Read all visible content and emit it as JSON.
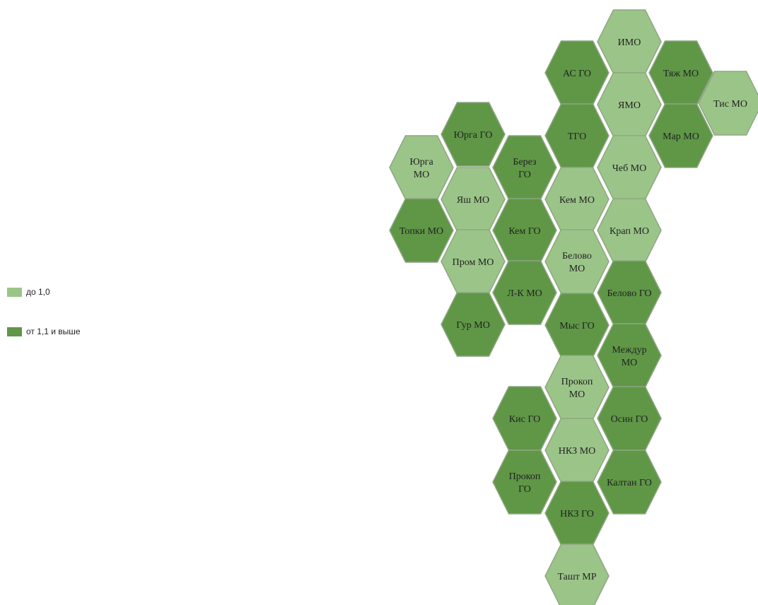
{
  "legend": {
    "items": [
      {
        "label": "до 1,0",
        "color": "#9bc588"
      },
      {
        "label": "от 1,1 и выше",
        "color": "#5f9746"
      }
    ]
  },
  "colors": {
    "low": "#9bc588",
    "high": "#5f9746"
  },
  "regions": [
    {
      "lines": [
        "ИМО"
      ],
      "level": "low"
    },
    {
      "lines": [
        "АС ГО"
      ],
      "level": "high"
    },
    {
      "lines": [
        "Тяж МО"
      ],
      "level": "high"
    },
    {
      "lines": [
        "ЯМО"
      ],
      "level": "low"
    },
    {
      "lines": [
        "Тис МО"
      ],
      "level": "low"
    },
    {
      "lines": [
        "ТГО"
      ],
      "level": "high"
    },
    {
      "lines": [
        "Мар МО"
      ],
      "level": "high"
    },
    {
      "lines": [
        "Юрга ГО"
      ],
      "level": "high"
    },
    {
      "lines": [
        "Юрга",
        "МО"
      ],
      "level": "low"
    },
    {
      "lines": [
        "Берез",
        "ГО"
      ],
      "level": "high"
    },
    {
      "lines": [
        "Чеб МО"
      ],
      "level": "low"
    },
    {
      "lines": [
        "Яш МО"
      ],
      "level": "low"
    },
    {
      "lines": [
        "Кем МО"
      ],
      "level": "low"
    },
    {
      "lines": [
        "Топки МО"
      ],
      "level": "high"
    },
    {
      "lines": [
        "Кем ГО"
      ],
      "level": "high"
    },
    {
      "lines": [
        "Крап МО"
      ],
      "level": "low"
    },
    {
      "lines": [
        "Пром МО"
      ],
      "level": "low"
    },
    {
      "lines": [
        "Белово",
        "МО"
      ],
      "level": "low"
    },
    {
      "lines": [
        "Л-К МО"
      ],
      "level": "high"
    },
    {
      "lines": [
        "Белово ГО"
      ],
      "level": "high"
    },
    {
      "lines": [
        "Гур МО"
      ],
      "level": "high"
    },
    {
      "lines": [
        "Мыс ГО"
      ],
      "level": "high"
    },
    {
      "lines": [
        "Междур",
        "МО"
      ],
      "level": "high"
    },
    {
      "lines": [
        "Прокоп",
        "МО"
      ],
      "level": "low"
    },
    {
      "lines": [
        "Кис ГО"
      ],
      "level": "high"
    },
    {
      "lines": [
        "Осин ГО"
      ],
      "level": "high"
    },
    {
      "lines": [
        "НКЗ МО"
      ],
      "level": "low"
    },
    {
      "lines": [
        "Прокоп",
        "ГО"
      ],
      "level": "high"
    },
    {
      "lines": [
        "Калтан ГО"
      ],
      "level": "high"
    },
    {
      "lines": [
        "НКЗ ГО"
      ],
      "level": "high"
    },
    {
      "lines": [
        "Ташт МР"
      ],
      "level": "low"
    }
  ]
}
